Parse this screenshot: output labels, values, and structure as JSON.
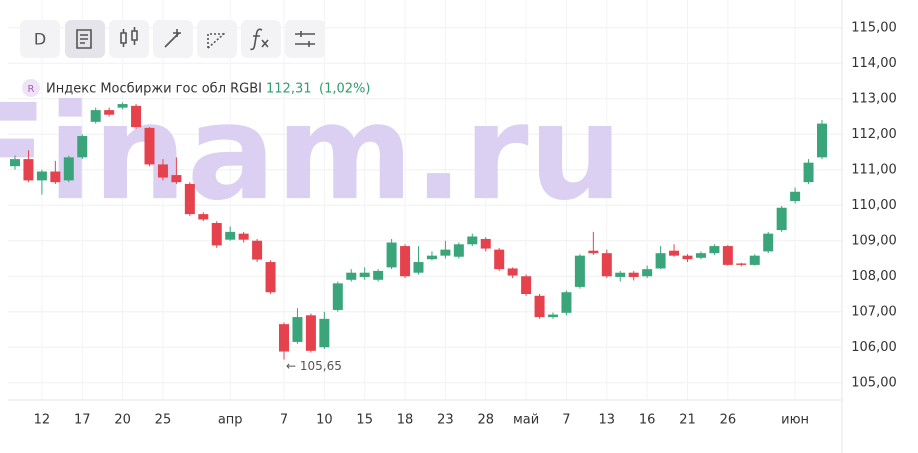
{
  "toolbar": {
    "interval": "D"
  },
  "chart_data": {
    "type": "candlestick",
    "title": "Индекс Мосбиржи гос обл RGBI",
    "badge": "R",
    "price": "112,31",
    "change": "(1,02%)",
    "watermark": "Finam.ru",
    "annotation": {
      "text": "← 105,65",
      "value": 105.65
    },
    "up_color": "#3aa57a",
    "down_color": "#e5424d",
    "categories": [
      null,
      null,
      "12",
      null,
      null,
      "17",
      null,
      null,
      "20",
      null,
      null,
      "25",
      null,
      null,
      null,
      null,
      "апр",
      null,
      null,
      null,
      "7",
      null,
      null,
      "10",
      null,
      null,
      "15",
      null,
      null,
      "18",
      null,
      null,
      "23",
      null,
      null,
      "28",
      null,
      null,
      "май",
      null,
      null,
      "7",
      null,
      null,
      "13",
      null,
      null,
      "16",
      null,
      null,
      "21",
      null,
      null,
      "26",
      null,
      null,
      null,
      null,
      "июн",
      null,
      null
    ],
    "open": [
      111.1,
      111.3,
      110.7,
      110.95,
      110.7,
      111.35,
      112.35,
      112.68,
      112.75,
      112.8,
      112.18,
      111.15,
      110.85,
      110.6,
      109.75,
      109.5,
      109.03,
      109.2,
      109.0,
      108.4,
      106.65,
      106.15,
      106.9,
      106.0,
      107.05,
      107.9,
      107.98,
      107.9,
      108.25,
      108.85,
      108.1,
      108.48,
      108.58,
      108.55,
      108.9,
      109.05,
      108.75,
      108.22,
      108.0,
      107.45,
      106.85,
      106.97,
      107.7,
      108.72,
      108.65,
      107.98,
      108.1,
      108.0,
      108.22,
      108.72,
      108.58,
      108.52,
      108.65,
      108.85,
      108.36,
      108.32,
      108.7,
      109.3,
      110.12,
      110.65,
      111.35
    ],
    "high": [
      111.4,
      111.55,
      111.0,
      111.25,
      111.4,
      112.0,
      112.75,
      112.75,
      112.9,
      112.85,
      112.2,
      111.3,
      111.35,
      110.65,
      109.8,
      109.55,
      109.4,
      109.25,
      109.05,
      108.45,
      106.7,
      107.1,
      106.95,
      107.0,
      107.85,
      108.2,
      108.25,
      108.2,
      109.05,
      108.9,
      108.85,
      108.7,
      109.0,
      108.95,
      109.2,
      109.1,
      108.8,
      108.25,
      108.05,
      107.5,
      106.98,
      107.6,
      108.62,
      109.25,
      108.75,
      108.15,
      108.15,
      108.3,
      108.85,
      108.9,
      108.62,
      108.7,
      108.9,
      108.88,
      108.38,
      108.62,
      109.25,
      109.98,
      110.5,
      111.3,
      112.4
    ],
    "low": [
      111.0,
      110.65,
      110.3,
      110.6,
      110.65,
      111.3,
      112.3,
      112.5,
      112.7,
      112.15,
      111.1,
      110.7,
      110.6,
      109.7,
      109.55,
      108.8,
      109.0,
      108.95,
      108.4,
      107.5,
      105.65,
      106.1,
      105.85,
      105.95,
      107.0,
      107.85,
      107.9,
      107.85,
      108.2,
      107.95,
      108.05,
      108.45,
      108.5,
      108.5,
      108.85,
      108.7,
      108.15,
      107.95,
      107.45,
      106.8,
      106.8,
      106.9,
      107.65,
      108.6,
      107.95,
      107.85,
      107.88,
      107.95,
      108.2,
      108.55,
      108.4,
      108.48,
      108.6,
      108.3,
      108.28,
      108.3,
      108.65,
      109.25,
      110.05,
      110.6,
      111.3
    ],
    "close": [
      111.3,
      110.7,
      110.95,
      110.65,
      111.35,
      111.95,
      112.68,
      112.55,
      112.85,
      112.2,
      111.15,
      110.78,
      110.65,
      109.75,
      109.6,
      108.87,
      109.25,
      109.03,
      108.47,
      107.55,
      105.88,
      106.85,
      105.9,
      106.8,
      107.8,
      108.1,
      108.1,
      108.15,
      108.95,
      108.0,
      108.4,
      108.58,
      108.75,
      108.9,
      109.12,
      108.78,
      108.2,
      108.02,
      107.5,
      106.85,
      106.92,
      107.55,
      108.58,
      108.65,
      108.0,
      108.1,
      107.98,
      108.2,
      108.65,
      108.58,
      108.48,
      108.65,
      108.85,
      108.32,
      108.32,
      108.58,
      109.2,
      109.93,
      110.38,
      111.2,
      112.3
    ],
    "ylim": [
      104.5,
      115.5
    ],
    "yticks": [
      {
        "value": 105,
        "label": "105,00"
      },
      {
        "value": 106,
        "label": "106,00"
      },
      {
        "value": 107,
        "label": "107,00"
      },
      {
        "value": 108,
        "label": "108,00"
      },
      {
        "value": 109,
        "label": "109,00"
      },
      {
        "value": 110,
        "label": "110,00"
      },
      {
        "value": 111,
        "label": "111,00"
      },
      {
        "value": 112,
        "label": "112,00"
      },
      {
        "value": 113,
        "label": "113,00"
      },
      {
        "value": 114,
        "label": "114,00"
      },
      {
        "value": 115,
        "label": "115,00"
      }
    ],
    "grid": true
  }
}
